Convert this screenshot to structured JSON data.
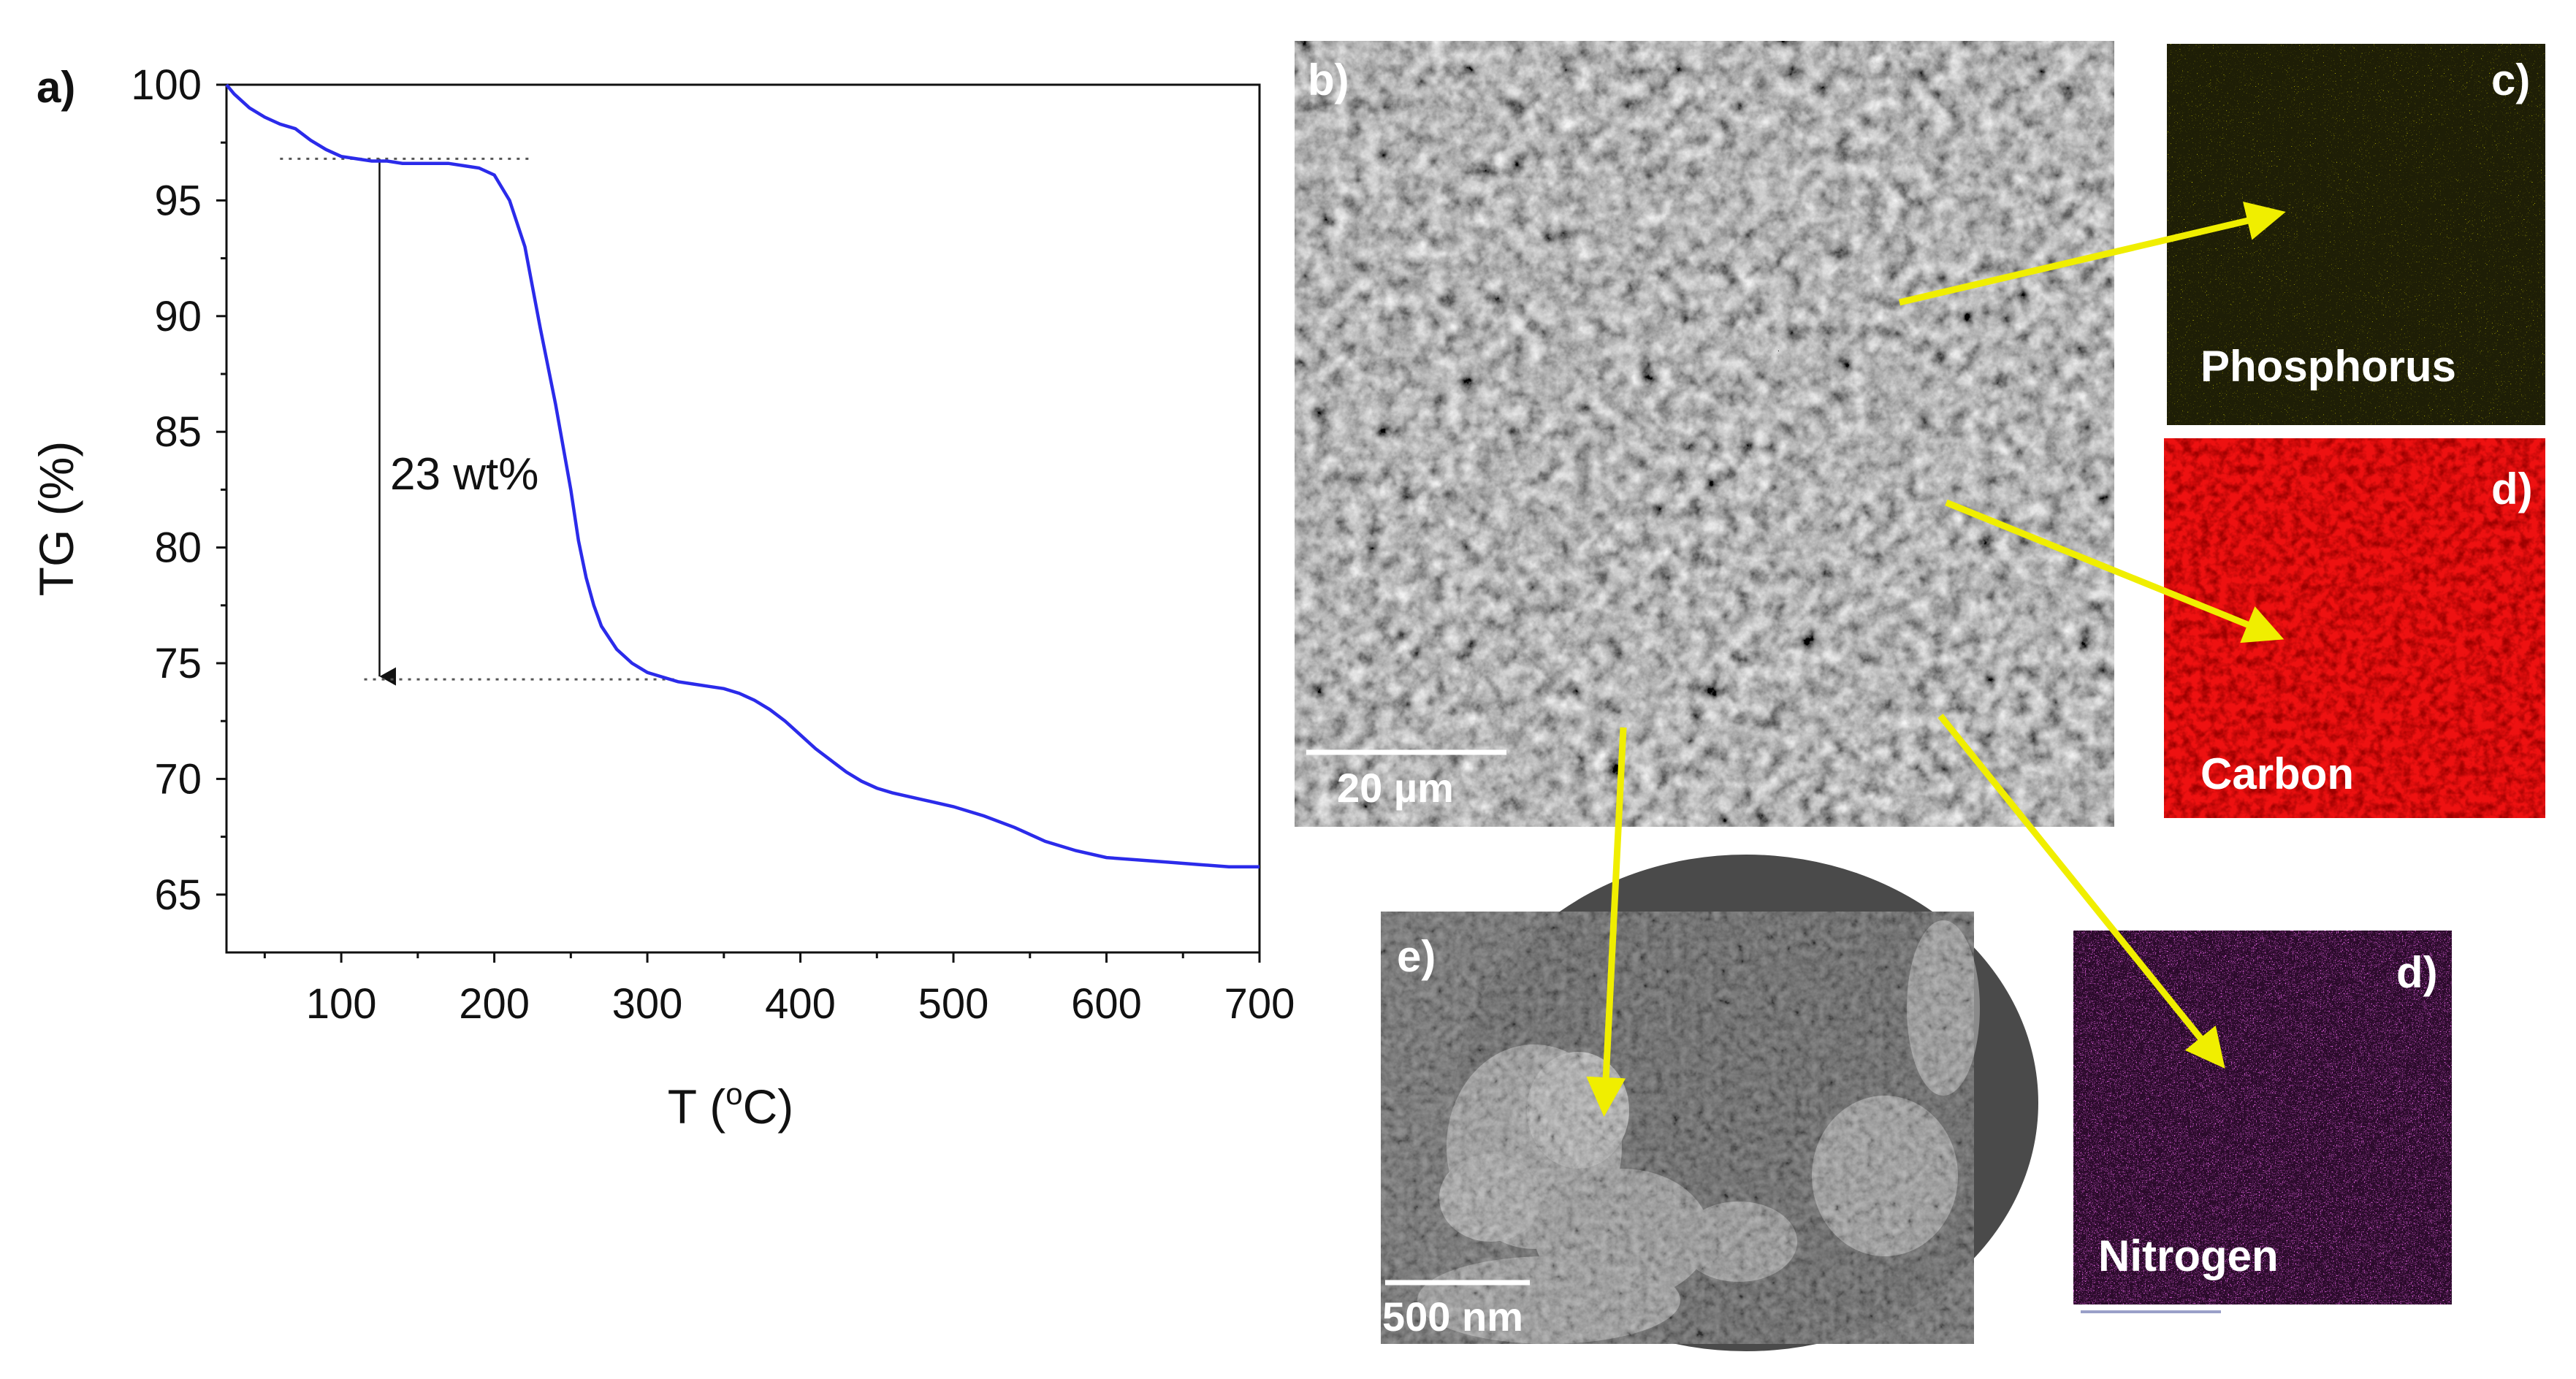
{
  "colors": {
    "curve": "#2b2bea",
    "arrow": "#f0ee00",
    "phosphorus": "#e8e000",
    "carbon": "#ff1a1a",
    "nitrogen": "#cc22cc",
    "axis": "#111111"
  },
  "chart_data": {
    "type": "line",
    "panel_label": "a)",
    "title": "",
    "xlabel_main": "T (",
    "xlabel_sup": "o",
    "xlabel_end": "C)",
    "ylabel": "TG (%)",
    "xlim": [
      25,
      700
    ],
    "ylim": [
      62.5,
      100
    ],
    "x_ticks": [
      100,
      200,
      300,
      400,
      500,
      600,
      700
    ],
    "x_tick_labels": [
      "100",
      "200",
      "300",
      "400",
      "500",
      "600",
      "700"
    ],
    "y_ticks": [
      65,
      70,
      75,
      80,
      85,
      90,
      95,
      100
    ],
    "y_tick_labels": [
      "65",
      "70",
      "75",
      "80",
      "85",
      "90",
      "95",
      "100"
    ],
    "series": [
      {
        "name": "TG",
        "x": [
          25,
          30,
          40,
          50,
          60,
          70,
          80,
          90,
          100,
          110,
          120,
          130,
          140,
          150,
          160,
          170,
          180,
          190,
          200,
          210,
          220,
          230,
          240,
          250,
          255,
          260,
          265,
          270,
          280,
          290,
          300,
          310,
          320,
          330,
          340,
          350,
          360,
          370,
          380,
          390,
          400,
          410,
          420,
          430,
          440,
          450,
          460,
          480,
          500,
          520,
          540,
          550,
          560,
          580,
          600,
          620,
          640,
          660,
          680,
          700
        ],
        "y": [
          100,
          99.6,
          99.0,
          98.6,
          98.3,
          98.1,
          97.6,
          97.2,
          96.9,
          96.8,
          96.7,
          96.7,
          96.6,
          96.6,
          96.6,
          96.6,
          96.5,
          96.4,
          96.1,
          95.0,
          93.0,
          89.5,
          86.2,
          82.5,
          80.3,
          78.7,
          77.5,
          76.6,
          75.6,
          75.0,
          74.6,
          74.4,
          74.2,
          74.1,
          74.0,
          73.9,
          73.7,
          73.4,
          73.0,
          72.5,
          71.9,
          71.3,
          70.8,
          70.3,
          69.9,
          69.6,
          69.4,
          69.1,
          68.8,
          68.4,
          67.9,
          67.6,
          67.3,
          66.9,
          66.6,
          66.5,
          66.4,
          66.3,
          66.2,
          66.2
        ]
      }
    ],
    "annotations": [
      {
        "text": "23 wt%",
        "type": "arrow",
        "from": [
          125,
          96.8
        ],
        "to": [
          125,
          74.3
        ]
      },
      {
        "type": "dotted-line",
        "x": [
          60,
          225
        ],
        "y": 96.8
      },
      {
        "type": "dotted-line",
        "x": [
          115,
          320
        ],
        "y": 74.3
      }
    ]
  },
  "panels": {
    "b": {
      "label": "b)",
      "scale": "20 µm"
    },
    "c": {
      "label": "c)",
      "element": "Phosphorus"
    },
    "d1": {
      "label": "d)",
      "element": "Carbon"
    },
    "d2": {
      "label": "d)",
      "element": "Nitrogen"
    },
    "e": {
      "label": "e)",
      "scale": "500 nm"
    }
  }
}
